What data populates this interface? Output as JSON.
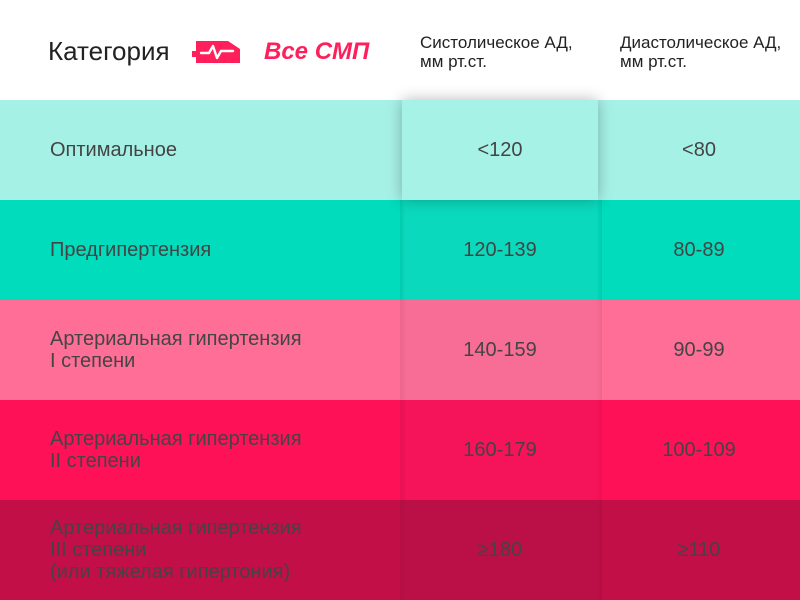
{
  "header": {
    "category_label": "Категория",
    "logo_text": "Все СМП",
    "systolic_label": "Систолическое АД,\nмм рт.ст.",
    "diastolic_label": "Диастолическое АД,\nмм рт.ст."
  },
  "rows": [
    {
      "category": "Оптимальное",
      "systolic": "<120",
      "diastolic": "<80"
    },
    {
      "category": "Предгипертензия",
      "systolic": "120-139",
      "diastolic": "80-89"
    },
    {
      "category": "Артериальная гипертензия\nI степени",
      "systolic": "140-159",
      "diastolic": "90-99"
    },
    {
      "category": "Артериальная гипертензия\nII степени",
      "systolic": "160-179",
      "diastolic": "100-109"
    },
    {
      "category": "Артериальная гипертензия\nIII степени\n(или тяжелая гипертония)",
      "systolic": "≥180",
      "diastolic": "≥110"
    }
  ],
  "colors": {
    "brand": "#ff1f5a",
    "optimal": "#a6f1e6",
    "prehypertension": "#00dcbc",
    "stage1": "#ff6e96",
    "stage2": "#ff1158",
    "stage3": "#c20f47"
  },
  "icons": {
    "logo": "ambulance-icon"
  }
}
